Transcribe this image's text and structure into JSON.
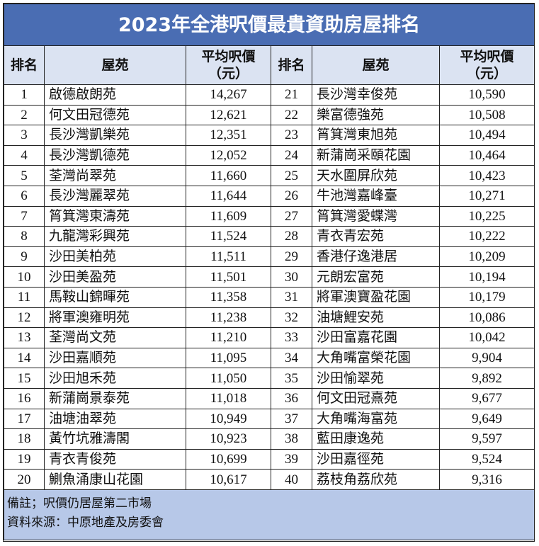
{
  "title": "2023年全港呎價最貴資助房屋排名",
  "header": {
    "rank": "排名",
    "name": "屋苑",
    "price_line1": "平均呎價",
    "price_line2": "（元）"
  },
  "rows": [
    [
      1,
      "啟德啟朗苑",
      "14,267"
    ],
    [
      2,
      "何文田冠德苑",
      "12,621"
    ],
    [
      3,
      "長沙灣凱樂苑",
      "12,351"
    ],
    [
      4,
      "長沙灣凱德苑",
      "12,052"
    ],
    [
      5,
      "荃灣尚翠苑",
      "11,660"
    ],
    [
      6,
      "長沙灣麗翠苑",
      "11,644"
    ],
    [
      7,
      "筲箕灣東濤苑",
      "11,609"
    ],
    [
      8,
      "九龍灣彩興苑",
      "11,524"
    ],
    [
      9,
      "沙田美柏苑",
      "11,511"
    ],
    [
      10,
      "沙田美盈苑",
      "11,501"
    ],
    [
      11,
      "馬鞍山錦暉苑",
      "11,358"
    ],
    [
      12,
      "將軍澳雍明苑",
      "11,238"
    ],
    [
      13,
      "荃灣尚文苑",
      "11,210"
    ],
    [
      14,
      "沙田嘉順苑",
      "11,095"
    ],
    [
      15,
      "沙田旭禾苑",
      "11,050"
    ],
    [
      16,
      "新蒲崗景泰苑",
      "11,018"
    ],
    [
      17,
      "油塘油翠苑",
      "10,949"
    ],
    [
      18,
      "黃竹坑雅濤閣",
      "10,923"
    ],
    [
      19,
      "青衣青俊苑",
      "10,699"
    ],
    [
      20,
      "鰂魚涌康山花園",
      "10,617"
    ],
    [
      21,
      "長沙灣幸俊苑",
      "10,590"
    ],
    [
      22,
      "樂富德強苑",
      "10,508"
    ],
    [
      23,
      "筲箕灣東旭苑",
      "10,494"
    ],
    [
      24,
      "新蒲崗采頤花園",
      "10,464"
    ],
    [
      25,
      "天水圍屏欣苑",
      "10,423"
    ],
    [
      26,
      "牛池灣嘉峰臺",
      "10,271"
    ],
    [
      27,
      "筲箕灣愛蝶灣",
      "10,225"
    ],
    [
      28,
      "青衣青宏苑",
      "10,222"
    ],
    [
      29,
      "香港仔逸港居",
      "10,209"
    ],
    [
      30,
      "元朗宏富苑",
      "10,194"
    ],
    [
      31,
      "將軍澳寶盈花園",
      "10,179"
    ],
    [
      32,
      "油塘鯉安苑",
      "10,086"
    ],
    [
      33,
      "沙田富嘉花園",
      "10,042"
    ],
    [
      34,
      "大角嘴富榮花園",
      "9,904"
    ],
    [
      35,
      "沙田愉翠苑",
      "9,892"
    ],
    [
      36,
      "何文田冠熹苑",
      "9,677"
    ],
    [
      37,
      "大角嘴海富苑",
      "9,649"
    ],
    [
      38,
      "藍田康逸苑",
      "9,597"
    ],
    [
      39,
      "沙田嘉徑苑",
      "9,524"
    ],
    [
      40,
      "荔枝角荔欣苑",
      "9,316"
    ]
  ],
  "footer": [
    "備註；呎價仍居屋第二市場",
    "資料來源：中原地產及房委會"
  ]
}
